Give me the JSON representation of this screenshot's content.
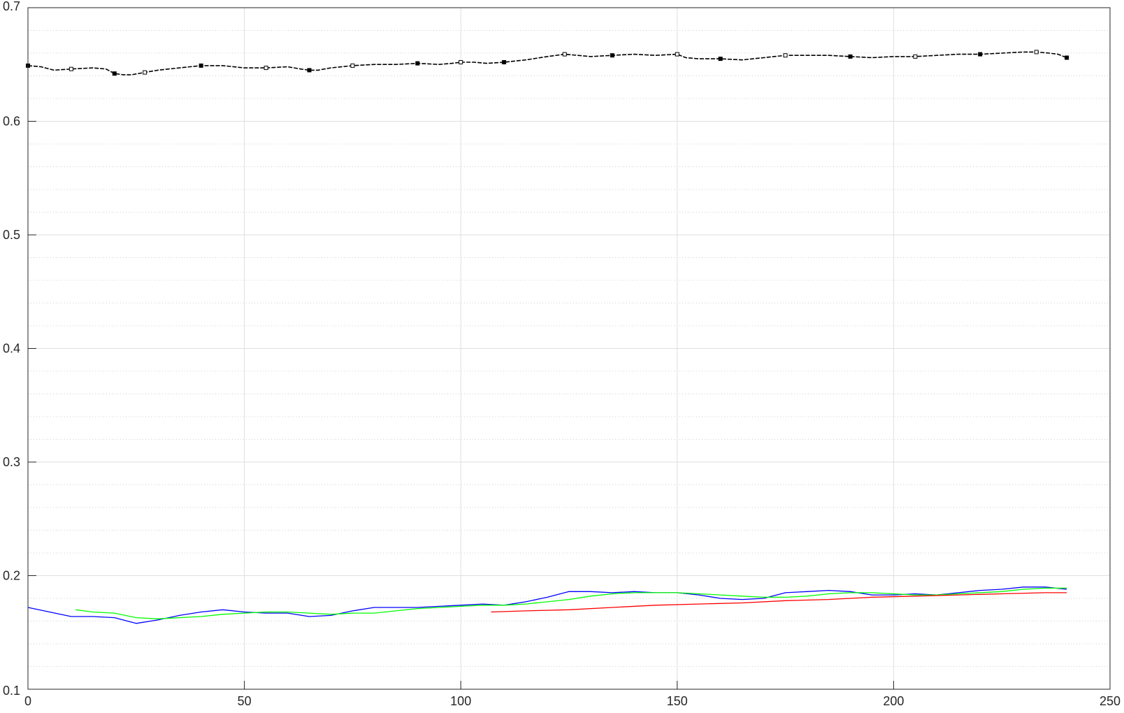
{
  "chart_data": {
    "type": "line",
    "title": "",
    "xlabel": "",
    "ylabel": "",
    "xlim": [
      0,
      250
    ],
    "ylim": [
      0.1,
      0.7
    ],
    "grid": true,
    "minor_grid_y": true,
    "xticks": [
      "0",
      "50",
      "100",
      "150",
      "200",
      "250"
    ],
    "yticks": [
      "0.1",
      "0.2",
      "0.3",
      "0.4",
      "0.5",
      "0.6",
      "0.7"
    ],
    "series": [
      {
        "color": "#000000",
        "style": "dashed-with-markers",
        "x": [
          0,
          3,
          6,
          10,
          15,
          18,
          20,
          22,
          24,
          27,
          30,
          35,
          40,
          45,
          50,
          55,
          60,
          63,
          65,
          67,
          70,
          75,
          80,
          85,
          90,
          95,
          98,
          100,
          103,
          106,
          110,
          115,
          120,
          124,
          127,
          130,
          135,
          140,
          145,
          150,
          152,
          155,
          160,
          165,
          170,
          175,
          180,
          185,
          190,
          195,
          200,
          205,
          210,
          215,
          220,
          225,
          230,
          233,
          236,
          238,
          240
        ],
        "y": [
          0.649,
          0.648,
          0.645,
          0.646,
          0.647,
          0.646,
          0.642,
          0.641,
          0.641,
          0.643,
          0.645,
          0.647,
          0.649,
          0.649,
          0.647,
          0.647,
          0.648,
          0.646,
          0.645,
          0.645,
          0.647,
          0.649,
          0.65,
          0.65,
          0.651,
          0.65,
          0.651,
          0.652,
          0.652,
          0.651,
          0.652,
          0.654,
          0.657,
          0.659,
          0.658,
          0.657,
          0.658,
          0.659,
          0.658,
          0.659,
          0.656,
          0.655,
          0.655,
          0.654,
          0.656,
          0.658,
          0.658,
          0.658,
          0.657,
          0.656,
          0.657,
          0.657,
          0.658,
          0.659,
          0.659,
          0.66,
          0.661,
          0.661,
          0.66,
          0.659,
          0.656
        ]
      },
      {
        "color": "#0000ff",
        "style": "solid",
        "x": [
          0,
          5,
          10,
          15,
          20,
          25,
          30,
          35,
          40,
          45,
          50,
          55,
          60,
          65,
          70,
          75,
          80,
          85,
          90,
          95,
          100,
          105,
          110,
          115,
          120,
          125,
          130,
          135,
          140,
          145,
          150,
          155,
          160,
          165,
          170,
          175,
          180,
          185,
          190,
          195,
          200,
          205,
          210,
          215,
          220,
          225,
          230,
          235,
          240
        ],
        "y": [
          0.172,
          0.168,
          0.164,
          0.164,
          0.163,
          0.158,
          0.161,
          0.165,
          0.168,
          0.17,
          0.168,
          0.167,
          0.167,
          0.164,
          0.165,
          0.169,
          0.172,
          0.172,
          0.172,
          0.173,
          0.174,
          0.175,
          0.174,
          0.177,
          0.181,
          0.186,
          0.186,
          0.185,
          0.186,
          0.185,
          0.185,
          0.183,
          0.18,
          0.179,
          0.18,
          0.185,
          0.186,
          0.187,
          0.186,
          0.183,
          0.183,
          0.184,
          0.183,
          0.185,
          0.187,
          0.188,
          0.19,
          0.19,
          0.188
        ]
      },
      {
        "color": "#00ff00",
        "style": "solid",
        "x": [
          11,
          15,
          20,
          25,
          30,
          35,
          40,
          45,
          50,
          55,
          60,
          65,
          70,
          75,
          80,
          85,
          90,
          95,
          100,
          105,
          110,
          115,
          120,
          125,
          130,
          135,
          140,
          145,
          150,
          155,
          160,
          165,
          170,
          175,
          180,
          185,
          190,
          195,
          200,
          205,
          210,
          215,
          220,
          225,
          230,
          235,
          240
        ],
        "y": [
          0.17,
          0.168,
          0.167,
          0.163,
          0.162,
          0.163,
          0.164,
          0.166,
          0.167,
          0.168,
          0.168,
          0.167,
          0.166,
          0.167,
          0.167,
          0.169,
          0.171,
          0.172,
          0.173,
          0.174,
          0.174,
          0.175,
          0.177,
          0.179,
          0.182,
          0.184,
          0.185,
          0.185,
          0.185,
          0.184,
          0.183,
          0.182,
          0.181,
          0.181,
          0.182,
          0.184,
          0.185,
          0.185,
          0.184,
          0.183,
          0.183,
          0.184,
          0.185,
          0.186,
          0.188,
          0.189,
          0.189
        ]
      },
      {
        "color": "#ff0000",
        "style": "solid",
        "x": [
          107,
          115,
          125,
          135,
          145,
          155,
          165,
          175,
          185,
          195,
          205,
          215,
          225,
          235,
          240
        ],
        "y": [
          0.168,
          0.169,
          0.17,
          0.172,
          0.174,
          0.175,
          0.176,
          0.178,
          0.179,
          0.181,
          0.182,
          0.183,
          0.184,
          0.185,
          0.185
        ]
      }
    ]
  }
}
